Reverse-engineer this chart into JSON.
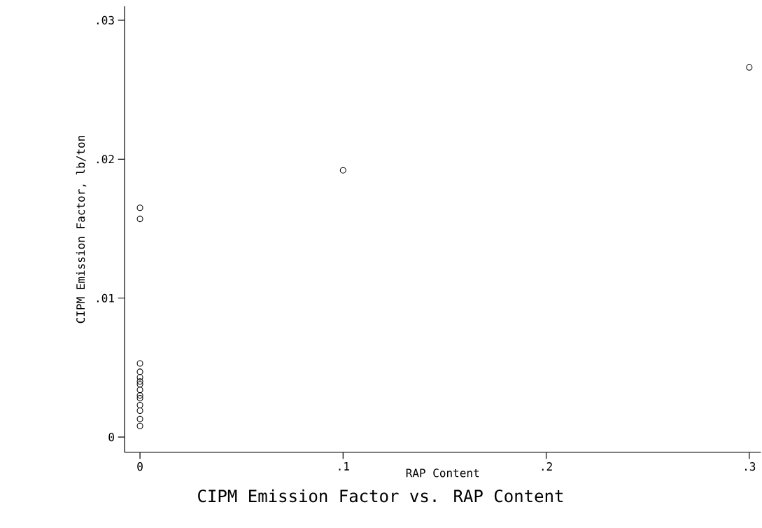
{
  "chart_data": {
    "type": "scatter",
    "title": "CIPM Emission Factor vs. RAP Content",
    "xlabel": "RAP Content",
    "ylabel": "CIPM Emission Factor, lb/ton",
    "series": [
      {
        "color": "#000000",
        "x": [
          0,
          0,
          0,
          0,
          0,
          0,
          0,
          0,
          0,
          0,
          0,
          0,
          0,
          0,
          0.1,
          0.3
        ],
        "values": [
          0.0165,
          0.0157,
          0.0053,
          0.0047,
          0.0043,
          0.004,
          0.0038,
          0.0034,
          0.003,
          0.0028,
          0.0023,
          0.0019,
          0.0013,
          0.0008,
          0.0192,
          0.0266
        ]
      }
    ],
    "xlim": [
      -0.0076,
      0.3057
    ],
    "ylim": [
      -0.0011,
      0.031
    ],
    "xticks": [
      0,
      {
        "value": 0.1,
        "label": ".1"
      },
      {
        "value": 0.2,
        "label": ".2"
      },
      {
        "value": 0.3,
        "label": ".3"
      }
    ],
    "yticks": [
      0,
      {
        "value": 0.01,
        "label": ".01"
      },
      {
        "value": 0.02,
        "label": ".02"
      },
      {
        "value": 0.03,
        "label": ".03"
      }
    ],
    "marker": "circle"
  }
}
